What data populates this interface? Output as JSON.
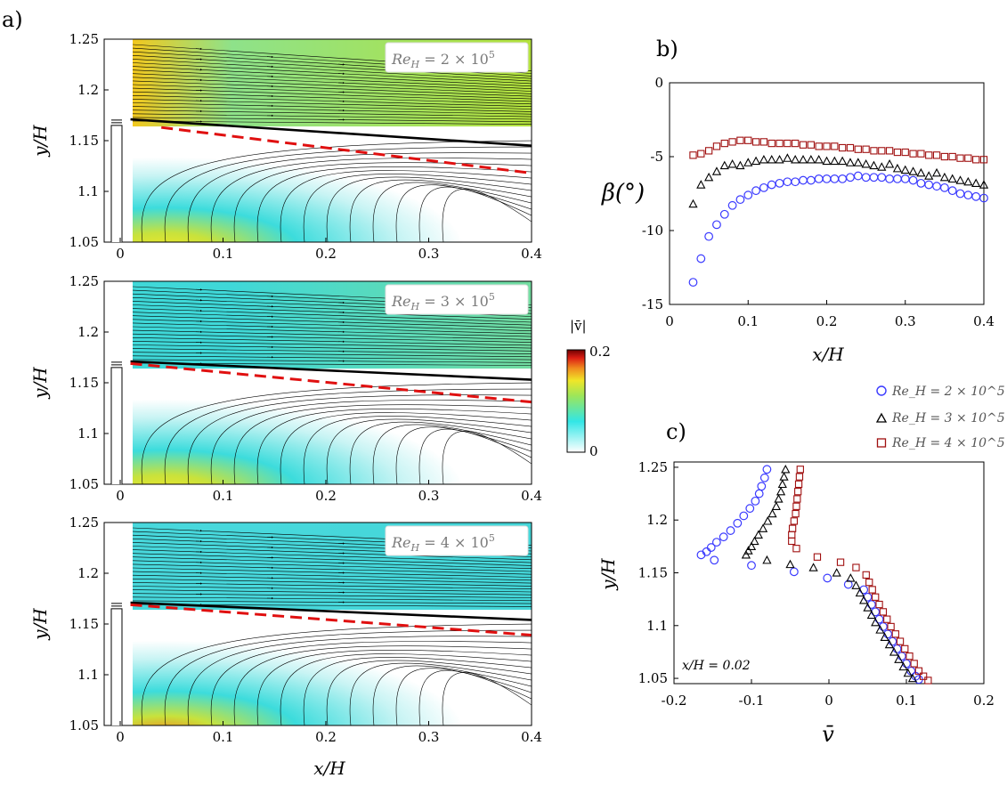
{
  "panels": {
    "a": "a)",
    "b": "b)",
    "c": "c)"
  },
  "chart_data": [
    {
      "type": "heatmap",
      "description_label": "a",
      "xlabel": "x/H",
      "ylabel": "y/H",
      "xlim": [
        0,
        0.4
      ],
      "ylim": [
        1.05,
        1.25
      ],
      "xticks": [
        "0",
        "0.1",
        "0.2",
        "0.3",
        "0.4"
      ],
      "yticks": [
        "1.25",
        "1.2",
        "1.15",
        "1.1",
        "1.05"
      ],
      "colorbar": {
        "label": "|v̄|",
        "min_label": "0",
        "max_label": "0.2",
        "range": [
          0,
          0.2
        ]
      },
      "subplots": [
        {
          "label": "Re_H = 2 × 10^5",
          "re_text": "Re",
          "re_sub": "H",
          "re_val": " = 2 × 10",
          "re_exp": "5",
          "solid_line": [
            [
              0.01,
              1.171
            ],
            [
              0.4,
              1.145
            ]
          ],
          "dashed_line": [
            [
              0.04,
              1.163
            ],
            [
              0.4,
              1.118
            ]
          ]
        },
        {
          "label": "Re_H = 3 × 10^5",
          "re_text": "Re",
          "re_sub": "H",
          "re_val": " = 3 × 10",
          "re_exp": "5",
          "solid_line": [
            [
              0.01,
              1.171
            ],
            [
              0.4,
              1.153
            ]
          ],
          "dashed_line": [
            [
              0.01,
              1.169
            ],
            [
              0.4,
              1.131
            ]
          ]
        },
        {
          "label": "Re_H = 4 × 10^5",
          "re_text": "Re",
          "re_sub": "H",
          "re_val": " = 4 × 10",
          "re_exp": "5",
          "solid_line": [
            [
              0.01,
              1.171
            ],
            [
              0.4,
              1.154
            ]
          ],
          "dashed_line": [
            [
              0.01,
              1.169
            ],
            [
              0.4,
              1.139
            ]
          ]
        }
      ]
    },
    {
      "type": "scatter",
      "description_label": "b",
      "xlabel": "x/H",
      "ylabel": "β(°)",
      "xlim": [
        0,
        0.4
      ],
      "ylim": [
        -15,
        0
      ],
      "xticks": [
        "0",
        "0.1",
        "0.2",
        "0.3",
        "0.4"
      ],
      "yticks": [
        "0",
        "-5",
        "-10",
        "-15"
      ],
      "x": [
        0.03,
        0.04,
        0.05,
        0.06,
        0.07,
        0.08,
        0.09,
        0.1,
        0.11,
        0.12,
        0.13,
        0.14,
        0.15,
        0.16,
        0.17,
        0.18,
        0.19,
        0.2,
        0.21,
        0.22,
        0.23,
        0.24,
        0.25,
        0.26,
        0.27,
        0.28,
        0.29,
        0.3,
        0.31,
        0.32,
        0.33,
        0.34,
        0.35,
        0.36,
        0.37,
        0.38,
        0.39,
        0.4
      ],
      "series": [
        {
          "name": "Re_H = 2 × 10^5",
          "marker": "circle",
          "color": "#3a3aff",
          "values": [
            -13.5,
            -11.9,
            -10.4,
            -9.6,
            -8.9,
            -8.3,
            -7.9,
            -7.6,
            -7.3,
            -7.1,
            -6.9,
            -6.8,
            -6.7,
            -6.7,
            -6.6,
            -6.6,
            -6.5,
            -6.5,
            -6.5,
            -6.5,
            -6.4,
            -6.3,
            -6.4,
            -6.4,
            -6.4,
            -6.5,
            -6.5,
            -6.5,
            -6.6,
            -6.8,
            -6.9,
            -7.0,
            -7.1,
            -7.3,
            -7.5,
            -7.6,
            -7.7,
            -7.8
          ]
        },
        {
          "name": "Re_H = 3 × 10^5",
          "marker": "triangle",
          "color": "#000000",
          "values": [
            -8.2,
            -6.9,
            -6.4,
            -6.0,
            -5.6,
            -5.5,
            -5.6,
            -5.4,
            -5.3,
            -5.2,
            -5.2,
            -5.2,
            -5.1,
            -5.2,
            -5.2,
            -5.2,
            -5.2,
            -5.3,
            -5.3,
            -5.3,
            -5.4,
            -5.4,
            -5.5,
            -5.6,
            -5.7,
            -5.5,
            -5.8,
            -5.9,
            -6.0,
            -6.1,
            -6.3,
            -6.1,
            -6.4,
            -6.5,
            -6.6,
            -6.7,
            -6.8,
            -6.9
          ]
        },
        {
          "name": "Re_H = 4 × 10^5",
          "marker": "square",
          "color": "#a01010",
          "values": [
            -4.9,
            -4.8,
            -4.6,
            -4.3,
            -4.1,
            -4.0,
            -3.9,
            -3.9,
            -4.0,
            -4.0,
            -4.1,
            -4.1,
            -4.1,
            -4.1,
            -4.2,
            -4.2,
            -4.3,
            -4.3,
            -4.3,
            -4.4,
            -4.4,
            -4.5,
            -4.5,
            -4.6,
            -4.6,
            -4.6,
            -4.7,
            -4.7,
            -4.8,
            -4.8,
            -4.9,
            -4.9,
            -5.0,
            -5.0,
            -5.1,
            -5.1,
            -5.2,
            -5.2
          ]
        }
      ]
    },
    {
      "type": "scatter",
      "description_label": "c",
      "xlabel": "v̄",
      "ylabel": "y/H",
      "xlim": [
        -0.2,
        0.2
      ],
      "ylim": [
        1.045,
        1.255
      ],
      "xticks": [
        "-0.2",
        "-0.1",
        "0",
        "0.1",
        "0.2"
      ],
      "yticks": [
        "1.25",
        "1.2",
        "1.15",
        "1.1",
        "1.05"
      ],
      "annotation": "x/H = 0.02",
      "legend": [
        "Re_H = 2 × 10^5",
        "Re_H = 3 × 10^5",
        "Re_H = 4 × 10^5"
      ],
      "series": [
        {
          "name": "Re_H = 2 × 10^5",
          "marker": "circle",
          "color": "#3a3aff",
          "points": [
            [
              -0.08,
              1.248
            ],
            [
              -0.083,
              1.24
            ],
            [
              -0.087,
              1.232
            ],
            [
              -0.09,
              1.225
            ],
            [
              -0.095,
              1.218
            ],
            [
              -0.102,
              1.211
            ],
            [
              -0.11,
              1.204
            ],
            [
              -0.118,
              1.197
            ],
            [
              -0.127,
              1.19
            ],
            [
              -0.136,
              1.184
            ],
            [
              -0.145,
              1.179
            ],
            [
              -0.152,
              1.174
            ],
            [
              -0.158,
              1.17
            ],
            [
              -0.165,
              1.167
            ],
            [
              -0.148,
              1.162
            ],
            [
              -0.1,
              1.157
            ],
            [
              -0.045,
              1.151
            ],
            [
              -0.002,
              1.145
            ],
            [
              0.025,
              1.139
            ],
            [
              0.045,
              1.134
            ],
            [
              0.05,
              1.127
            ],
            [
              0.055,
              1.12
            ],
            [
              0.06,
              1.113
            ],
            [
              0.065,
              1.106
            ],
            [
              0.07,
              1.099
            ],
            [
              0.076,
              1.092
            ],
            [
              0.082,
              1.085
            ],
            [
              0.088,
              1.078
            ],
            [
              0.094,
              1.071
            ],
            [
              0.1,
              1.064
            ],
            [
              0.106,
              1.057
            ],
            [
              0.112,
              1.052
            ],
            [
              0.116,
              1.049
            ]
          ]
        },
        {
          "name": "Re_H = 3 × 10^5",
          "marker": "triangle",
          "color": "#000000",
          "points": [
            [
              -0.056,
              1.248
            ],
            [
              -0.058,
              1.241
            ],
            [
              -0.06,
              1.234
            ],
            [
              -0.062,
              1.227
            ],
            [
              -0.065,
              1.22
            ],
            [
              -0.068,
              1.213
            ],
            [
              -0.073,
              1.206
            ],
            [
              -0.079,
              1.199
            ],
            [
              -0.085,
              1.192
            ],
            [
              -0.091,
              1.186
            ],
            [
              -0.096,
              1.18
            ],
            [
              -0.1,
              1.175
            ],
            [
              -0.104,
              1.171
            ],
            [
              -0.107,
              1.167
            ],
            [
              -0.08,
              1.162
            ],
            [
              -0.05,
              1.158
            ],
            [
              -0.02,
              1.155
            ],
            [
              0.01,
              1.15
            ],
            [
              0.028,
              1.145
            ],
            [
              0.035,
              1.138
            ],
            [
              0.04,
              1.131
            ],
            [
              0.045,
              1.124
            ],
            [
              0.05,
              1.117
            ],
            [
              0.055,
              1.11
            ],
            [
              0.06,
              1.103
            ],
            [
              0.066,
              1.096
            ],
            [
              0.072,
              1.089
            ],
            [
              0.078,
              1.082
            ],
            [
              0.084,
              1.075
            ],
            [
              0.09,
              1.068
            ],
            [
              0.096,
              1.061
            ],
            [
              0.102,
              1.055
            ],
            [
              0.108,
              1.05
            ]
          ]
        },
        {
          "name": "Re_H = 4 × 10^5",
          "marker": "square",
          "color": "#a01010",
          "points": [
            [
              -0.037,
              1.248
            ],
            [
              -0.038,
              1.241
            ],
            [
              -0.039,
              1.234
            ],
            [
              -0.04,
              1.227
            ],
            [
              -0.041,
              1.22
            ],
            [
              -0.042,
              1.213
            ],
            [
              -0.043,
              1.206
            ],
            [
              -0.045,
              1.199
            ],
            [
              -0.047,
              1.192
            ],
            [
              -0.048,
              1.186
            ],
            [
              -0.048,
              1.18
            ],
            [
              -0.042,
              1.173
            ],
            [
              -0.015,
              1.165
            ],
            [
              0.015,
              1.16
            ],
            [
              0.035,
              1.155
            ],
            [
              0.048,
              1.148
            ],
            [
              0.052,
              1.141
            ],
            [
              0.056,
              1.134
            ],
            [
              0.06,
              1.127
            ],
            [
              0.065,
              1.12
            ],
            [
              0.07,
              1.113
            ],
            [
              0.075,
              1.106
            ],
            [
              0.08,
              1.099
            ],
            [
              0.086,
              1.092
            ],
            [
              0.092,
              1.085
            ],
            [
              0.098,
              1.078
            ],
            [
              0.104,
              1.071
            ],
            [
              0.11,
              1.064
            ],
            [
              0.116,
              1.057
            ],
            [
              0.122,
              1.052
            ],
            [
              0.128,
              1.048
            ]
          ]
        }
      ]
    }
  ]
}
